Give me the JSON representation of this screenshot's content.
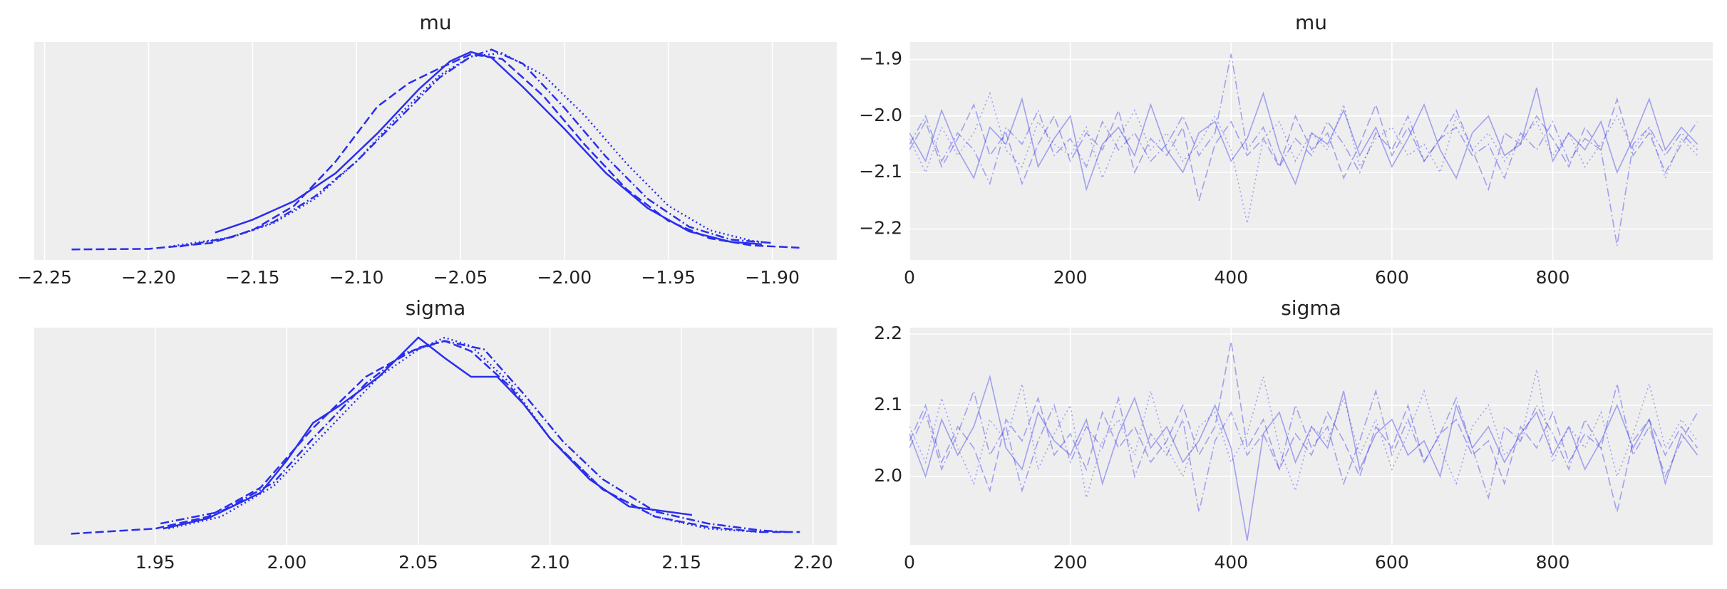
{
  "chart_data": [
    {
      "type": "line",
      "title": "mu",
      "background": "#eeeeee",
      "grid": true,
      "line_width": 2.5,
      "opacity": 1,
      "xlim": [
        -2.255,
        -1.869
      ],
      "ylim": [
        -0.85,
        17.85
      ],
      "xticks": [
        {
          "value": -2.25,
          "label": "−2.25"
        },
        {
          "value": -2.2,
          "label": "−2.20"
        },
        {
          "value": -2.15,
          "label": "−2.15"
        },
        {
          "value": -2.1,
          "label": "−2.10"
        },
        {
          "value": -2.05,
          "label": "−2.05"
        },
        {
          "value": -2.0,
          "label": "−2.00"
        },
        {
          "value": -1.95,
          "label": "−1.95"
        },
        {
          "value": -1.9,
          "label": "−1.90"
        }
      ],
      "series": [
        {
          "color": "#2a2eec",
          "linestyle": "solid",
          "x": [
            -2.168,
            -2.15,
            -2.13,
            -2.11,
            -2.09,
            -2.07,
            -2.055,
            -2.045,
            -2.035,
            -2.02,
            -2.0,
            -1.98,
            -1.96,
            -1.94,
            -1.92,
            -1.905
          ],
          "values": [
            1.5,
            2.6,
            4.2,
            6.6,
            10.0,
            13.8,
            16.2,
            17.0,
            16.5,
            14.0,
            10.4,
            6.6,
            3.6,
            1.6,
            0.7,
            0.5
          ]
        },
        {
          "color": "#2a2eec",
          "linestyle": "dashed",
          "x": [
            -2.237,
            -2.2,
            -2.17,
            -2.15,
            -2.13,
            -2.11,
            -2.09,
            -2.075,
            -2.06,
            -2.045,
            -2.03,
            -2.01,
            -1.99,
            -1.97,
            -1.95,
            -1.93,
            -1.91,
            -1.887
          ],
          "values": [
            0.05,
            0.1,
            0.6,
            1.7,
            3.8,
            7.6,
            12.3,
            14.3,
            15.6,
            16.8,
            16.4,
            13.2,
            9.0,
            5.2,
            2.5,
            1.0,
            0.4,
            0.2
          ]
        },
        {
          "color": "#2a2eec",
          "linestyle": "dotted",
          "x": [
            -2.19,
            -2.16,
            -2.14,
            -2.12,
            -2.1,
            -2.08,
            -2.06,
            -2.045,
            -2.03,
            -2.01,
            -1.99,
            -1.97,
            -1.95,
            -1.93,
            -1.91,
            -1.9
          ],
          "values": [
            0.3,
            1.1,
            2.3,
            4.4,
            7.6,
            11.5,
            15.0,
            16.6,
            16.9,
            15.0,
            11.5,
            7.4,
            3.8,
            1.7,
            0.8,
            0.6
          ]
        },
        {
          "color": "#2a2eec",
          "linestyle": "dashdot",
          "x": [
            -2.185,
            -2.16,
            -2.14,
            -2.12,
            -2.1,
            -2.08,
            -2.06,
            -2.045,
            -2.035,
            -2.02,
            -2.0,
            -1.98,
            -1.96,
            -1.94,
            -1.92,
            -1.9
          ],
          "values": [
            0.3,
            1.1,
            2.4,
            4.6,
            7.6,
            11.2,
            14.8,
            16.6,
            17.2,
            16.0,
            12.2,
            8.0,
            4.4,
            2.0,
            0.9,
            0.6
          ]
        }
      ]
    },
    {
      "type": "line",
      "title": "mu",
      "background": "#eeeeee",
      "grid": true,
      "line_width": 1.6,
      "opacity": 0.4,
      "xlim": [
        0,
        999
      ],
      "ylim": [
        -2.255,
        -1.869
      ],
      "xticks": [
        0,
        200,
        400,
        600,
        800
      ],
      "yticks": [
        {
          "value": -2.2,
          "label": "−2.2"
        },
        {
          "value": -2.1,
          "label": "−2.1"
        },
        {
          "value": -2.0,
          "label": "−2.0"
        },
        {
          "value": -1.9,
          "label": "−1.9"
        }
      ],
      "x": [
        0,
        20,
        40,
        60,
        80,
        100,
        120,
        140,
        160,
        180,
        200,
        220,
        240,
        260,
        280,
        300,
        320,
        340,
        360,
        380,
        400,
        420,
        440,
        460,
        480,
        500,
        520,
        540,
        560,
        580,
        600,
        620,
        640,
        660,
        680,
        700,
        720,
        740,
        760,
        780,
        800,
        820,
        840,
        860,
        880,
        900,
        920,
        940,
        960,
        980
      ],
      "series": [
        {
          "color": "#2a2eec",
          "linestyle": "solid",
          "values": [
            -2.03,
            -2.08,
            -1.99,
            -2.06,
            -2.11,
            -2.02,
            -2.05,
            -1.97,
            -2.09,
            -2.04,
            -2.0,
            -2.13,
            -2.05,
            -2.02,
            -2.07,
            -1.98,
            -2.06,
            -2.1,
            -2.03,
            -2.01,
            -2.08,
            -2.04,
            -1.96,
            -2.06,
            -2.12,
            -2.03,
            -2.05,
            -1.99,
            -2.07,
            -2.02,
            -2.09,
            -2.04,
            -1.98,
            -2.06,
            -2.11,
            -2.03,
            -2.0,
            -2.07,
            -2.05,
            -1.95,
            -2.08,
            -2.03,
            -2.06,
            -2.01,
            -2.1,
            -2.04,
            -1.97,
            -2.06,
            -2.02,
            -2.05
          ]
        },
        {
          "color": "#2a2eec",
          "linestyle": "dashed",
          "values": [
            -2.06,
            -2.01,
            -2.09,
            -2.04,
            -1.98,
            -2.07,
            -2.03,
            -2.12,
            -2.05,
            -2.0,
            -2.08,
            -2.03,
            -2.06,
            -1.99,
            -2.1,
            -2.04,
            -2.07,
            -2.02,
            -2.15,
            -2.05,
            -2.01,
            -2.07,
            -2.04,
            -2.09,
            -2.0,
            -2.06,
            -2.03,
            -2.11,
            -2.05,
            -1.98,
            -2.07,
            -2.02,
            -2.08,
            -2.04,
            -1.99,
            -2.06,
            -2.13,
            -2.03,
            -2.05,
            -2.0,
            -2.04,
            -2.09,
            -2.02,
            -2.06,
            -1.97,
            -2.07,
            -2.03,
            -2.1,
            -2.05,
            -2.01
          ]
        },
        {
          "color": "#2a2eec",
          "linestyle": "dotted",
          "values": [
            -2.04,
            -2.1,
            -2.02,
            -2.07,
            -2.03,
            -1.96,
            -2.06,
            -2.09,
            -2.01,
            -2.05,
            -2.07,
            -2.02,
            -2.11,
            -2.04,
            -1.99,
            -2.06,
            -2.03,
            -2.08,
            -2.05,
            -2.0,
            -2.06,
            -2.19,
            -2.04,
            -2.01,
            -2.08,
            -2.03,
            -2.06,
            -1.98,
            -2.09,
            -2.04,
            -2.02,
            -2.07,
            -2.05,
            -2.1,
            -2.0,
            -2.06,
            -2.03,
            -2.08,
            -2.04,
            -2.01,
            -2.07,
            -2.03,
            -2.09,
            -2.05,
            -2.0,
            -2.06,
            -2.02,
            -2.11,
            -2.04,
            -2.07
          ]
        },
        {
          "color": "#2a2eec",
          "linestyle": "dashdot",
          "values": [
            -2.05,
            -2.0,
            -2.08,
            -2.03,
            -2.06,
            -2.12,
            -2.02,
            -2.05,
            -1.99,
            -2.07,
            -2.04,
            -2.09,
            -2.01,
            -2.06,
            -2.03,
            -2.08,
            -2.05,
            -2.0,
            -2.07,
            -2.03,
            -1.89,
            -2.06,
            -2.02,
            -2.09,
            -2.04,
            -2.07,
            -2.01,
            -2.05,
            -2.1,
            -2.03,
            -2.06,
            -2.0,
            -2.08,
            -2.04,
            -2.02,
            -2.07,
            -2.05,
            -2.11,
            -2.03,
            -2.06,
            -2.01,
            -2.08,
            -2.04,
            -2.06,
            -2.23,
            -2.05,
            -2.02,
            -2.07,
            -2.03,
            -2.06
          ]
        }
      ]
    },
    {
      "type": "line",
      "title": "sigma",
      "background": "#eeeeee",
      "grid": true,
      "line_width": 2.5,
      "opacity": 1,
      "xlim": [
        1.904,
        2.209
      ],
      "ylim": [
        -0.65,
        12.08
      ],
      "xticks": [
        1.95,
        {
          "value": 2.0,
          "label": "2.00"
        },
        2.05,
        {
          "value": 2.1,
          "label": "2.10"
        },
        2.15,
        {
          "value": 2.2,
          "label": "2.20"
        }
      ],
      "series": [
        {
          "color": "#2a2eec",
          "linestyle": "solid",
          "x": [
            1.953,
            1.97,
            1.99,
            2.0,
            2.01,
            2.02,
            2.035,
            2.05,
            2.06,
            2.07,
            2.08,
            2.09,
            2.1,
            2.115,
            2.13,
            2.154
          ],
          "values": [
            0.3,
            0.9,
            2.4,
            4.3,
            6.5,
            7.5,
            9.2,
            11.5,
            10.3,
            9.2,
            9.2,
            7.6,
            5.6,
            3.2,
            1.6,
            1.1
          ]
        },
        {
          "color": "#2a2eec",
          "linestyle": "dashed",
          "x": [
            1.918,
            1.95,
            1.97,
            1.99,
            2.01,
            2.03,
            2.05,
            2.06,
            2.07,
            2.085,
            2.1,
            2.12,
            2.14,
            2.16,
            2.18,
            2.195
          ],
          "values": [
            0.0,
            0.3,
            1.0,
            2.7,
            6.2,
            9.2,
            10.9,
            11.3,
            10.7,
            8.6,
            5.6,
            2.6,
            1.0,
            0.4,
            0.1,
            0.1
          ]
        },
        {
          "color": "#2a2eec",
          "linestyle": "dotted",
          "x": [
            1.955,
            1.975,
            1.995,
            2.015,
            2.035,
            2.05,
            2.06,
            2.07,
            2.085,
            2.1,
            2.12,
            2.14,
            2.16,
            2.18
          ],
          "values": [
            0.3,
            1.0,
            2.8,
            6.0,
            9.2,
            10.8,
            11.5,
            11.0,
            8.8,
            5.6,
            2.6,
            1.0,
            0.3,
            0.1
          ]
        },
        {
          "color": "#2a2eec",
          "linestyle": "dashdot",
          "x": [
            1.952,
            1.975,
            1.995,
            2.01,
            2.03,
            2.045,
            2.06,
            2.075,
            2.09,
            2.105,
            2.12,
            2.14,
            2.16,
            2.18,
            2.19
          ],
          "values": [
            0.6,
            1.3,
            3.0,
            5.6,
            8.8,
            10.6,
            11.3,
            10.8,
            8.2,
            5.4,
            3.2,
            1.3,
            0.6,
            0.2,
            0.1
          ]
        }
      ]
    },
    {
      "type": "line",
      "title": "sigma",
      "background": "#eeeeee",
      "grid": true,
      "line_width": 1.6,
      "opacity": 0.4,
      "xlim": [
        0,
        999
      ],
      "ylim": [
        1.904,
        2.209
      ],
      "xticks": [
        0,
        200,
        400,
        600,
        800
      ],
      "yticks": [
        {
          "value": 2.0,
          "label": "2.0"
        },
        2.1,
        2.2
      ],
      "x": [
        0,
        20,
        40,
        60,
        80,
        100,
        120,
        140,
        160,
        180,
        200,
        220,
        240,
        260,
        280,
        300,
        320,
        340,
        360,
        380,
        400,
        420,
        440,
        460,
        480,
        500,
        520,
        540,
        560,
        580,
        600,
        620,
        640,
        660,
        680,
        700,
        720,
        740,
        760,
        780,
        800,
        820,
        840,
        860,
        880,
        900,
        920,
        940,
        960,
        980
      ],
      "series": [
        {
          "color": "#2a2eec",
          "linestyle": "solid",
          "values": [
            2.06,
            2.0,
            2.08,
            2.03,
            2.07,
            2.14,
            2.04,
            2.01,
            2.09,
            2.05,
            2.03,
            2.08,
            1.99,
            2.06,
            2.11,
            2.04,
            2.07,
            2.02,
            2.05,
            2.1,
            2.04,
            1.91,
            2.06,
            2.09,
            2.02,
            2.07,
            2.04,
            2.12,
            2.01,
            2.06,
            2.08,
            2.03,
            2.05,
            2.0,
            2.1,
            2.04,
            2.07,
            2.02,
            2.06,
            2.09,
            2.03,
            2.07,
            2.01,
            2.05,
            2.1,
            2.04,
            2.08,
            1.99,
            2.06,
            2.03
          ]
        },
        {
          "color": "#2a2eec",
          "linestyle": "dashed",
          "values": [
            2.05,
            2.1,
            2.02,
            2.07,
            2.04,
            1.98,
            2.08,
            2.05,
            2.11,
            2.03,
            2.06,
            2.01,
            2.09,
            2.04,
            2.07,
            2.02,
            2.05,
            2.1,
            2.03,
            2.07,
            2.19,
            2.04,
            2.08,
            2.01,
            2.06,
            2.03,
            2.09,
            2.05,
            2.0,
            2.07,
            2.04,
            2.1,
            2.02,
            2.06,
            2.08,
            2.03,
            2.05,
            1.99,
            2.07,
            2.04,
            2.09,
            2.02,
            2.06,
            2.04,
            1.95,
            2.05,
            2.08,
            2.03,
            2.07,
            2.04
          ]
        },
        {
          "color": "#2a2eec",
          "linestyle": "dotted",
          "values": [
            2.07,
            2.02,
            2.11,
            2.04,
            1.99,
            2.08,
            2.05,
            2.13,
            2.01,
            2.06,
            2.1,
            1.97,
            2.05,
            2.08,
            2.03,
            2.12,
            2.04,
            2.0,
            2.07,
            2.09,
            2.02,
            2.06,
            2.14,
            2.04,
            1.98,
            2.07,
            2.05,
            2.11,
            2.03,
            2.08,
            2.01,
            2.06,
            2.12,
            2.04,
            1.99,
            2.07,
            2.1,
            2.03,
            2.05,
            2.15,
            2.02,
            2.07,
            2.04,
            2.09,
            2.0,
            2.06,
            2.13,
            2.04,
            2.08,
            2.05
          ]
        },
        {
          "color": "#2a2eec",
          "linestyle": "dashdot",
          "values": [
            2.04,
            2.09,
            2.01,
            2.06,
            2.12,
            2.03,
            2.07,
            1.98,
            2.05,
            2.1,
            2.02,
            2.07,
            2.04,
            2.11,
            2.0,
            2.06,
            2.03,
            2.08,
            1.95,
            2.05,
            2.09,
            2.03,
            2.06,
            2.01,
            2.1,
            2.04,
            2.07,
            1.99,
            2.05,
            2.12,
            2.03,
            2.08,
            2.02,
            2.06,
            2.11,
            2.04,
            1.97,
            2.07,
            2.05,
            2.1,
            2.06,
            2.01,
            2.08,
            2.04,
            2.13,
            2.03,
            2.07,
            2.0,
            2.05,
            2.09
          ]
        }
      ]
    }
  ]
}
